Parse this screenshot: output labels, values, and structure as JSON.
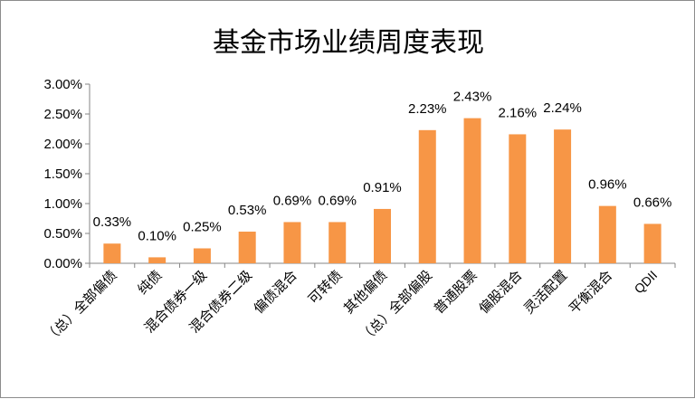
{
  "chart_data": {
    "type": "bar",
    "title": "基金市场业绩周度表现",
    "categories": [
      "（总）全部偏债",
      "纯债",
      "混合债券一级",
      "混合债券二级",
      "偏债混合",
      "可转债",
      "其他偏债",
      "（总）全部偏股",
      "普通股票",
      "偏股混合",
      "灵活配置",
      "平衡混合",
      "QDII"
    ],
    "values": [
      0.33,
      0.1,
      0.25,
      0.53,
      0.69,
      0.69,
      0.91,
      2.23,
      2.43,
      2.16,
      2.24,
      0.96,
      0.66
    ],
    "data_labels": [
      "0.33%",
      "0.10%",
      "0.25%",
      "0.53%",
      "0.69%",
      "0.69%",
      "0.91%",
      "2.23%",
      "2.43%",
      "2.16%",
      "2.24%",
      "0.96%",
      "0.66%"
    ],
    "yticks": [
      0,
      0.5,
      1.0,
      1.5,
      2.0,
      2.5,
      3.0
    ],
    "ytick_labels": [
      "0.00%",
      "0.50%",
      "1.00%",
      "1.50%",
      "2.00%",
      "2.50%",
      "3.00%"
    ],
    "ylim": [
      0,
      3.0
    ],
    "unit": "%",
    "xlabel": "",
    "ylabel": "",
    "grid": false,
    "legend": "none",
    "bar_color": "#F79646"
  }
}
